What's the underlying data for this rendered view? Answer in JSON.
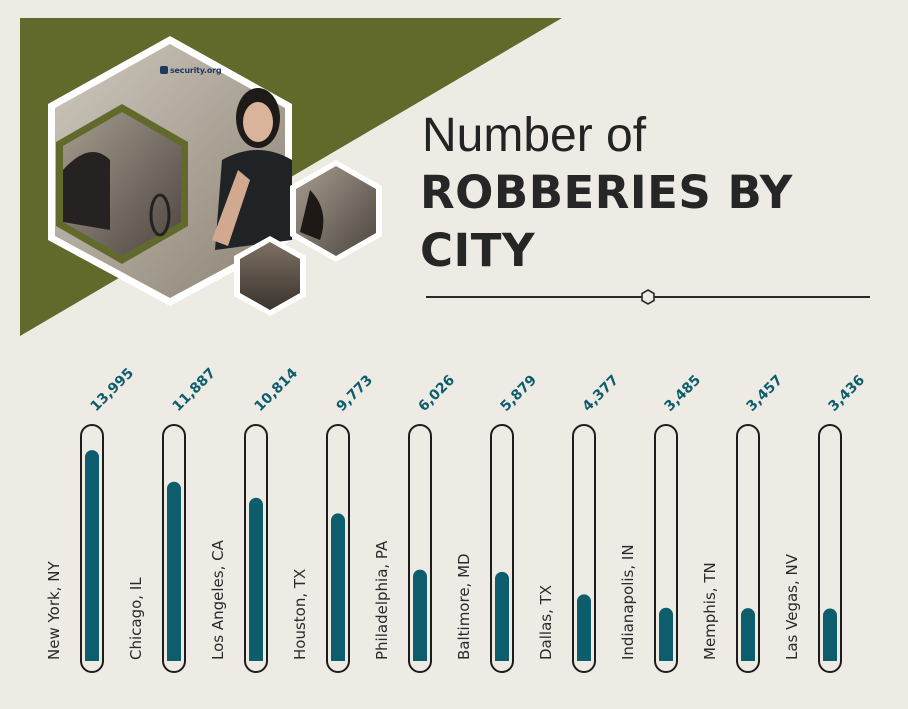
{
  "brand": {
    "name": "security.org"
  },
  "title": {
    "line1": "Number of",
    "line2": "ROBBERIES BY CITY"
  },
  "colors": {
    "accent": "#0d5d6d",
    "olive": "#616a2b",
    "background": "#eeebe5",
    "text": "#262626"
  },
  "chart_data": {
    "type": "bar",
    "title": "Number of ROBBERIES BY CITY",
    "xlabel": "",
    "ylabel": "",
    "ylim": [
      0,
      15000
    ],
    "categories": [
      "New York, NY",
      "Chicago, IL",
      "Los Angeles, CA",
      "Houston, TX",
      "Philadelphia, PA",
      "Baltimore, MD",
      "Dallas, TX",
      "Indianapolis, IN",
      "Memphis, TN",
      "Las Vegas, NV"
    ],
    "values": [
      13995,
      11887,
      10814,
      9773,
      6026,
      5879,
      4377,
      3485,
      3457,
      3436
    ],
    "value_labels": [
      "13,995",
      "11,887",
      "10,814",
      "9,773",
      "6,026",
      "5,879",
      "4,377",
      "3,485",
      "3,457",
      "3,436"
    ]
  }
}
